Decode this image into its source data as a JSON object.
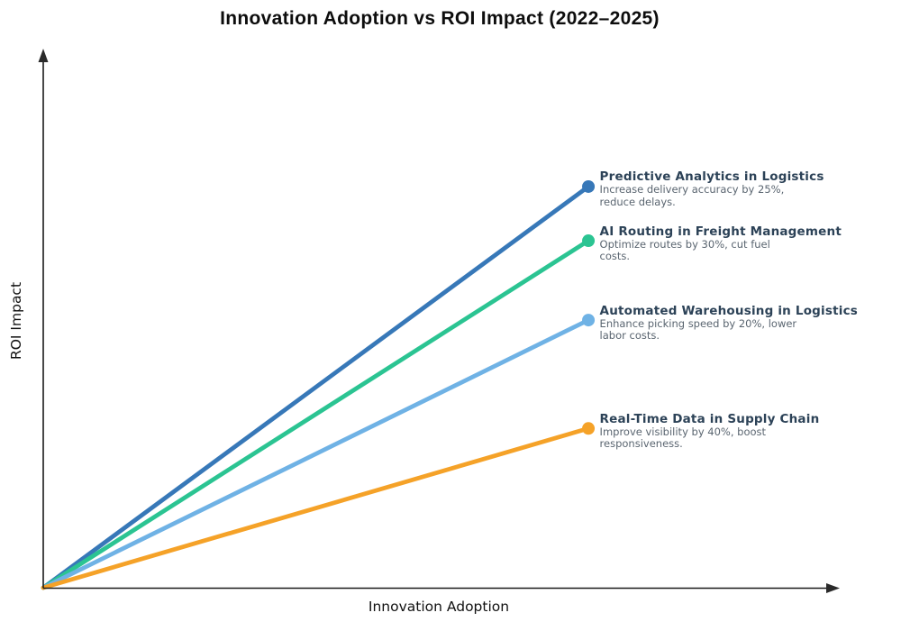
{
  "chart_data": {
    "type": "line",
    "title": "Innovation Adoption vs ROI Impact (2022–2025)",
    "xlabel": "Innovation Adoption",
    "ylabel": "ROI Impact",
    "xlim": [
      0,
      1
    ],
    "ylim": [
      0,
      1
    ],
    "grid": false,
    "ticks": "none (conceptual axes with arrowheads)",
    "legend_position": "none (direct annotations at line endpoints)",
    "series": [
      {
        "name": "Predictive Analytics in Logistics",
        "color": "#3778b8",
        "x": [
          0,
          0.686
        ],
        "y": [
          0,
          0.748
        ],
        "marker": "circle-at-end",
        "annotation": {
          "label": "Predictive Analytics in Logistics",
          "desc_lines": [
            "Increase delivery accuracy by 25%,",
            "reduce delays."
          ]
        }
      },
      {
        "name": "AI Routing in Freight Management",
        "color": "#2bc492",
        "x": [
          0,
          0.686
        ],
        "y": [
          0,
          0.647
        ],
        "marker": "circle-at-end",
        "annotation": {
          "label": "AI Routing in Freight Management",
          "desc_lines": [
            "Optimize routes by 30%, cut fuel",
            "costs."
          ]
        }
      },
      {
        "name": "Automated Warehousing in Logistics",
        "color": "#6fb2e5",
        "x": [
          0,
          0.686
        ],
        "y": [
          0,
          0.499
        ],
        "marker": "circle-at-end",
        "annotation": {
          "label": "Automated Warehousing in Logistics",
          "desc_lines": [
            "Enhance picking speed by 20%, lower",
            "labor costs."
          ]
        }
      },
      {
        "name": "Real-Time Data in Supply Chain",
        "color": "#f5a228",
        "x": [
          0,
          0.686
        ],
        "y": [
          0,
          0.297
        ],
        "marker": "circle-at-end",
        "annotation": {
          "label": "Real-Time Data in Supply Chain",
          "desc_lines": [
            "Improve visibility by 40%, boost",
            "responsiveness."
          ]
        }
      }
    ],
    "colors": {
      "axis": "#1a1a1a",
      "annotation_title": "#2c4257",
      "annotation_desc": "#5a6570",
      "background": "#ffffff"
    }
  }
}
